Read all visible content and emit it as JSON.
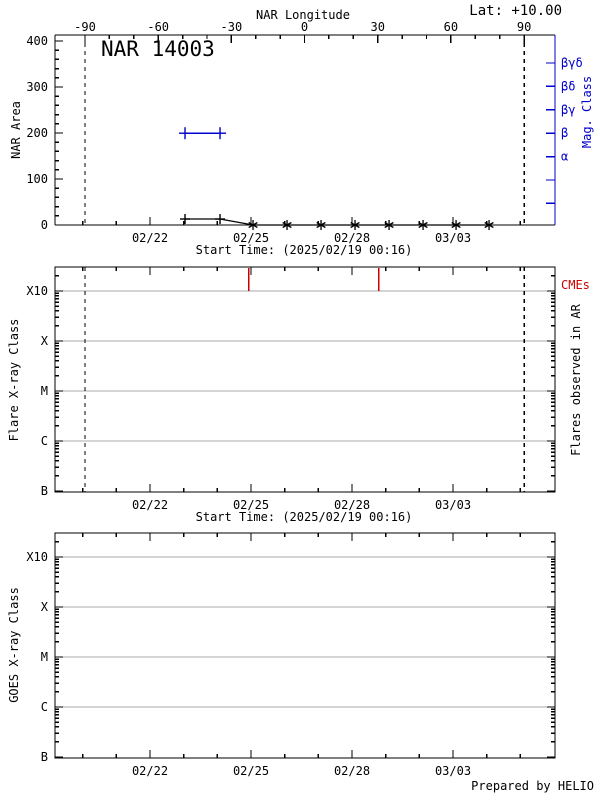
{
  "chart_data": {
    "credit": "Prepared by HELIO",
    "time_axis": {
      "start_time_label": "Start Time: (2025/02/19 00:16)",
      "tick_labels": [
        "02/22",
        "02/25",
        "02/28",
        "03/03"
      ],
      "tick_days": [
        0,
        3,
        6,
        9
      ],
      "minor_day_step": 1,
      "range_days": [
        -2.82,
        12.03
      ]
    },
    "colors": {
      "magnetic": "#0000cc",
      "cme": "#cc0000",
      "gridline": "#a9a9a9",
      "axis": "#000000"
    },
    "panels": [
      {
        "type": "line",
        "title": "NAR 14003",
        "corner_label": "Lat: +10.00",
        "ylabel": "NAR Area",
        "ylim": [
          0,
          413
        ],
        "yticks": [
          0,
          100,
          200,
          300,
          400
        ],
        "y_minor_step": 20,
        "top_axis": {
          "label": "NAR Longitude",
          "ticks": [
            -90,
            -60,
            -30,
            0,
            30,
            60,
            90
          ],
          "minor_step": 10,
          "range": [
            -90,
            90
          ]
        },
        "right_axis": {
          "label": "Mag. Class",
          "categories_top_to_bottom": [
            "βγδ",
            "βδ",
            "βγ",
            "β",
            "α",
            "",
            ""
          ]
        },
        "limb_crossing_days": [
          -1.93,
          11.11
        ],
        "series": [
          {
            "name": "NAR area",
            "axis": "left",
            "color_key": "axis",
            "x_days": [
              1.04,
              2.08,
              3.06,
              4.07,
              5.08,
              6.09,
              7.1,
              8.11,
              9.09,
              10.07
            ],
            "values": [
              13,
              13,
              0,
              0,
              0,
              0,
              0,
              0,
              0,
              0
            ],
            "markers": [
              "plus",
              "plus",
              "asterisk",
              "asterisk",
              "asterisk",
              "asterisk",
              "asterisk",
              "asterisk",
              "asterisk",
              "asterisk"
            ]
          },
          {
            "name": "Magnetic class",
            "axis": "right",
            "color_key": "magnetic",
            "x_days": [
              1.04,
              2.08
            ],
            "class_values": [
              "β",
              "β"
            ],
            "markers": [
              "plus",
              "plus"
            ]
          }
        ]
      },
      {
        "type": "event-ticks",
        "ylabel": "Flare X-ray Class",
        "right_label": "Flares observed in AR",
        "y_scale": "log",
        "y_tick_labels_top_to_bottom": [
          "X10",
          "X",
          "M",
          "C",
          "B"
        ],
        "gridline_levels": [
          "X10",
          "X",
          "M",
          "C"
        ],
        "limb_crossing_days": [
          -1.93,
          11.11
        ],
        "flares": [],
        "cmes": {
          "label": "CMEs",
          "x_days": [
            2.94,
            6.8
          ]
        }
      },
      {
        "type": "event-ticks",
        "ylabel": "GOES X-ray Class",
        "y_scale": "log",
        "y_tick_labels_top_to_bottom": [
          "X10",
          "X",
          "M",
          "C",
          "B"
        ],
        "gridline_levels": [
          "X10",
          "X",
          "M",
          "C"
        ],
        "flares": []
      }
    ]
  }
}
